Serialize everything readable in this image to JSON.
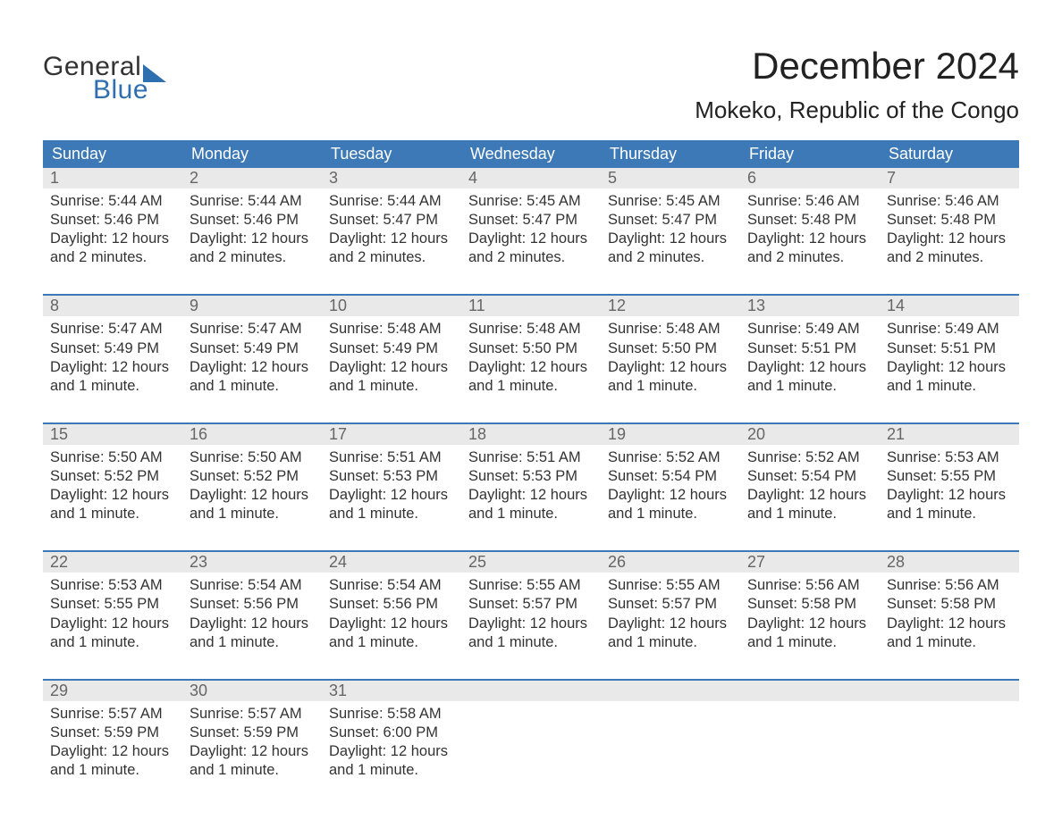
{
  "logo": {
    "word1": "General",
    "word2": "Blue",
    "word1_color": "#333333",
    "word2_color": "#2f6fb0",
    "triangle_color": "#2f6fb0"
  },
  "title": "December 2024",
  "location": "Mokeko, Republic of the Congo",
  "colors": {
    "header_bg": "#3d79b6",
    "header_text": "#ffffff",
    "num_row_bg": "#e9e9e9",
    "num_text": "#666666",
    "rule": "#3d79b6",
    "body_text": "#333333",
    "page_bg": "#ffffff"
  },
  "typography": {
    "title_fontsize": 42,
    "location_fontsize": 26,
    "dow_fontsize": 18,
    "cell_fontsize": 16.5
  },
  "days_of_week": [
    "Sunday",
    "Monday",
    "Tuesday",
    "Wednesday",
    "Thursday",
    "Friday",
    "Saturday"
  ],
  "weeks": [
    [
      {
        "n": "1",
        "sunrise": "Sunrise: 5:44 AM",
        "sunset": "Sunset: 5:46 PM",
        "day1": "Daylight: 12 hours",
        "day2": "and 2 minutes."
      },
      {
        "n": "2",
        "sunrise": "Sunrise: 5:44 AM",
        "sunset": "Sunset: 5:46 PM",
        "day1": "Daylight: 12 hours",
        "day2": "and 2 minutes."
      },
      {
        "n": "3",
        "sunrise": "Sunrise: 5:44 AM",
        "sunset": "Sunset: 5:47 PM",
        "day1": "Daylight: 12 hours",
        "day2": "and 2 minutes."
      },
      {
        "n": "4",
        "sunrise": "Sunrise: 5:45 AM",
        "sunset": "Sunset: 5:47 PM",
        "day1": "Daylight: 12 hours",
        "day2": "and 2 minutes."
      },
      {
        "n": "5",
        "sunrise": "Sunrise: 5:45 AM",
        "sunset": "Sunset: 5:47 PM",
        "day1": "Daylight: 12 hours",
        "day2": "and 2 minutes."
      },
      {
        "n": "6",
        "sunrise": "Sunrise: 5:46 AM",
        "sunset": "Sunset: 5:48 PM",
        "day1": "Daylight: 12 hours",
        "day2": "and 2 minutes."
      },
      {
        "n": "7",
        "sunrise": "Sunrise: 5:46 AM",
        "sunset": "Sunset: 5:48 PM",
        "day1": "Daylight: 12 hours",
        "day2": "and 2 minutes."
      }
    ],
    [
      {
        "n": "8",
        "sunrise": "Sunrise: 5:47 AM",
        "sunset": "Sunset: 5:49 PM",
        "day1": "Daylight: 12 hours",
        "day2": "and 1 minute."
      },
      {
        "n": "9",
        "sunrise": "Sunrise: 5:47 AM",
        "sunset": "Sunset: 5:49 PM",
        "day1": "Daylight: 12 hours",
        "day2": "and 1 minute."
      },
      {
        "n": "10",
        "sunrise": "Sunrise: 5:48 AM",
        "sunset": "Sunset: 5:49 PM",
        "day1": "Daylight: 12 hours",
        "day2": "and 1 minute."
      },
      {
        "n": "11",
        "sunrise": "Sunrise: 5:48 AM",
        "sunset": "Sunset: 5:50 PM",
        "day1": "Daylight: 12 hours",
        "day2": "and 1 minute."
      },
      {
        "n": "12",
        "sunrise": "Sunrise: 5:48 AM",
        "sunset": "Sunset: 5:50 PM",
        "day1": "Daylight: 12 hours",
        "day2": "and 1 minute."
      },
      {
        "n": "13",
        "sunrise": "Sunrise: 5:49 AM",
        "sunset": "Sunset: 5:51 PM",
        "day1": "Daylight: 12 hours",
        "day2": "and 1 minute."
      },
      {
        "n": "14",
        "sunrise": "Sunrise: 5:49 AM",
        "sunset": "Sunset: 5:51 PM",
        "day1": "Daylight: 12 hours",
        "day2": "and 1 minute."
      }
    ],
    [
      {
        "n": "15",
        "sunrise": "Sunrise: 5:50 AM",
        "sunset": "Sunset: 5:52 PM",
        "day1": "Daylight: 12 hours",
        "day2": "and 1 minute."
      },
      {
        "n": "16",
        "sunrise": "Sunrise: 5:50 AM",
        "sunset": "Sunset: 5:52 PM",
        "day1": "Daylight: 12 hours",
        "day2": "and 1 minute."
      },
      {
        "n": "17",
        "sunrise": "Sunrise: 5:51 AM",
        "sunset": "Sunset: 5:53 PM",
        "day1": "Daylight: 12 hours",
        "day2": "and 1 minute."
      },
      {
        "n": "18",
        "sunrise": "Sunrise: 5:51 AM",
        "sunset": "Sunset: 5:53 PM",
        "day1": "Daylight: 12 hours",
        "day2": "and 1 minute."
      },
      {
        "n": "19",
        "sunrise": "Sunrise: 5:52 AM",
        "sunset": "Sunset: 5:54 PM",
        "day1": "Daylight: 12 hours",
        "day2": "and 1 minute."
      },
      {
        "n": "20",
        "sunrise": "Sunrise: 5:52 AM",
        "sunset": "Sunset: 5:54 PM",
        "day1": "Daylight: 12 hours",
        "day2": "and 1 minute."
      },
      {
        "n": "21",
        "sunrise": "Sunrise: 5:53 AM",
        "sunset": "Sunset: 5:55 PM",
        "day1": "Daylight: 12 hours",
        "day2": "and 1 minute."
      }
    ],
    [
      {
        "n": "22",
        "sunrise": "Sunrise: 5:53 AM",
        "sunset": "Sunset: 5:55 PM",
        "day1": "Daylight: 12 hours",
        "day2": "and 1 minute."
      },
      {
        "n": "23",
        "sunrise": "Sunrise: 5:54 AM",
        "sunset": "Sunset: 5:56 PM",
        "day1": "Daylight: 12 hours",
        "day2": "and 1 minute."
      },
      {
        "n": "24",
        "sunrise": "Sunrise: 5:54 AM",
        "sunset": "Sunset: 5:56 PM",
        "day1": "Daylight: 12 hours",
        "day2": "and 1 minute."
      },
      {
        "n": "25",
        "sunrise": "Sunrise: 5:55 AM",
        "sunset": "Sunset: 5:57 PM",
        "day1": "Daylight: 12 hours",
        "day2": "and 1 minute."
      },
      {
        "n": "26",
        "sunrise": "Sunrise: 5:55 AM",
        "sunset": "Sunset: 5:57 PM",
        "day1": "Daylight: 12 hours",
        "day2": "and 1 minute."
      },
      {
        "n": "27",
        "sunrise": "Sunrise: 5:56 AM",
        "sunset": "Sunset: 5:58 PM",
        "day1": "Daylight: 12 hours",
        "day2": "and 1 minute."
      },
      {
        "n": "28",
        "sunrise": "Sunrise: 5:56 AM",
        "sunset": "Sunset: 5:58 PM",
        "day1": "Daylight: 12 hours",
        "day2": "and 1 minute."
      }
    ],
    [
      {
        "n": "29",
        "sunrise": "Sunrise: 5:57 AM",
        "sunset": "Sunset: 5:59 PM",
        "day1": "Daylight: 12 hours",
        "day2": "and 1 minute."
      },
      {
        "n": "30",
        "sunrise": "Sunrise: 5:57 AM",
        "sunset": "Sunset: 5:59 PM",
        "day1": "Daylight: 12 hours",
        "day2": "and 1 minute."
      },
      {
        "n": "31",
        "sunrise": "Sunrise: 5:58 AM",
        "sunset": "Sunset: 6:00 PM",
        "day1": "Daylight: 12 hours",
        "day2": "and 1 minute."
      },
      {
        "n": "",
        "sunrise": "",
        "sunset": "",
        "day1": "",
        "day2": ""
      },
      {
        "n": "",
        "sunrise": "",
        "sunset": "",
        "day1": "",
        "day2": ""
      },
      {
        "n": "",
        "sunrise": "",
        "sunset": "",
        "day1": "",
        "day2": ""
      },
      {
        "n": "",
        "sunrise": "",
        "sunset": "",
        "day1": "",
        "day2": ""
      }
    ]
  ]
}
